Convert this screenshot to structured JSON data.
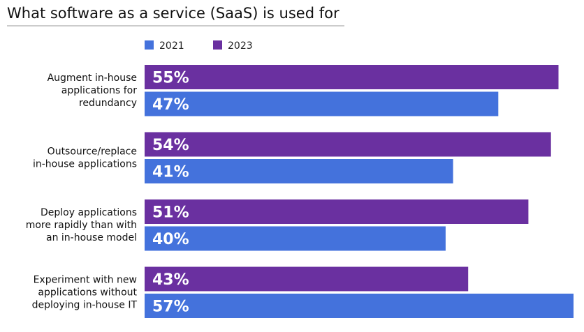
{
  "chart_data": {
    "type": "bar",
    "orientation": "horizontal",
    "title": "What software as a service (SaaS) is used for",
    "legend": [
      "2021",
      "2023"
    ],
    "legend_position": "top",
    "colors": {
      "2021": "#4472DC",
      "2023": "#6A30A0",
      "title_rule": "#999999"
    },
    "categories": [
      [
        "Augment in-house",
        "applications for",
        "redundancy"
      ],
      [
        "Outsource/replace",
        "in-house applications"
      ],
      [
        "Deploy applications",
        "more rapidly than with",
        "an in-house model"
      ],
      [
        "Experiment with new",
        "applications without",
        "deploying in-house IT"
      ]
    ],
    "series": [
      {
        "name": "2023",
        "values": [
          55,
          54,
          51,
          43
        ],
        "labels": [
          "55%",
          "54%",
          "51%",
          "43%"
        ]
      },
      {
        "name": "2021",
        "values": [
          47,
          41,
          40,
          57
        ],
        "labels": [
          "47%",
          "41%",
          "40%",
          "57%"
        ]
      }
    ],
    "xlim": [
      0,
      57
    ],
    "grid": false
  }
}
